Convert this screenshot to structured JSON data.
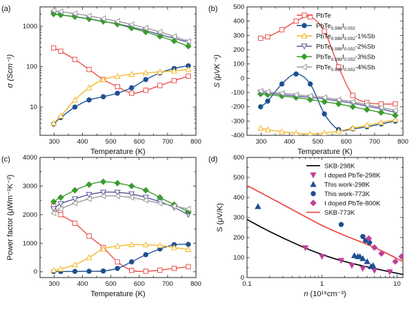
{
  "colors": {
    "red": "#e8504b",
    "blue": "#1e4f91",
    "yellow": "#f3b82a",
    "navy": "#5b5b9a",
    "green": "#3a9b2e",
    "gray": "#9b9b9b",
    "black": "#111111",
    "magenta": "#c0409a"
  },
  "chart_data": [
    {
      "type": "line",
      "panel_label": "(a)",
      "xlabel": "Temperature (K)",
      "ylabel": "σ (Scm⁻¹)",
      "xlim": [
        250,
        800
      ],
      "ylim": [
        2,
        3000
      ],
      "yscale": "log",
      "xticks": [
        300,
        400,
        500,
        600,
        700,
        800
      ],
      "yticks": [
        10,
        100,
        1000
      ],
      "yticklabels": [
        "10",
        "100",
        "1000"
      ],
      "series": [
        {
          "key": "pbte",
          "color_key": "red",
          "marker": "square-open",
          "x": [
            298,
            323,
            373,
            423,
            473,
            523,
            573,
            623,
            673,
            723,
            773
          ],
          "y": [
            290,
            240,
            150,
            85,
            48,
            32,
            22,
            26,
            34,
            45,
            58
          ]
        },
        {
          "key": "pbtei",
          "color_key": "blue",
          "marker": "circle",
          "x": [
            298,
            323,
            373,
            423,
            473,
            523,
            573,
            623,
            673,
            723,
            773
          ],
          "y": [
            3.8,
            5.5,
            10,
            15,
            18,
            22,
            30,
            48,
            70,
            90,
            105
          ]
        },
        {
          "key": "sb1",
          "color_key": "yellow",
          "marker": "triangle-up-open",
          "x": [
            298,
            323,
            373,
            423,
            473,
            523,
            573,
            623,
            673,
            723,
            773
          ],
          "y": [
            4,
            6,
            15,
            30,
            48,
            58,
            65,
            70,
            74,
            78,
            85
          ]
        },
        {
          "key": "sb2",
          "color_key": "navy",
          "marker": "triangle-down-open",
          "x": [
            298,
            323,
            373,
            423,
            473,
            523,
            573,
            623,
            673,
            723,
            773
          ],
          "y": [
            2000,
            1900,
            1700,
            1500,
            1300,
            1150,
            950,
            780,
            620,
            500,
            400
          ]
        },
        {
          "key": "sb3",
          "color_key": "green",
          "marker": "diamond",
          "x": [
            298,
            323,
            373,
            423,
            473,
            523,
            573,
            623,
            673,
            723,
            773
          ],
          "y": [
            2000,
            1900,
            1720,
            1520,
            1320,
            1120,
            900,
            720,
            560,
            430,
            320
          ]
        },
        {
          "key": "sb4",
          "color_key": "gray",
          "marker": "triangle-left-open",
          "x": [
            298,
            323,
            373,
            423,
            473,
            523,
            573,
            623,
            673,
            723,
            773
          ],
          "y": [
            2450,
            2300,
            2050,
            1800,
            1550,
            1320,
            1100,
            900,
            720,
            560,
            420
          ]
        }
      ]
    },
    {
      "type": "line",
      "panel_label": "(b)",
      "xlabel": "Temperature (K)",
      "ylabel": "S (μVK⁻¹)",
      "xlim": [
        250,
        800
      ],
      "ylim": [
        -400,
        500
      ],
      "xticks": [
        300,
        400,
        500,
        600,
        700,
        800
      ],
      "yticks": [
        -400,
        -300,
        -200,
        -100,
        0,
        100,
        200,
        300,
        400,
        500
      ],
      "legend": {
        "position": "top-right",
        "entries": [
          {
            "series": "pbte",
            "base": "PbTe",
            "sub": "",
            "suffix": ""
          },
          {
            "series": "pbtei",
            "base": "PbTe",
            "sub": "0.998",
            "mid": "I",
            "sub2": "0.002",
            "suffix": ""
          },
          {
            "series": "sb1",
            "base": "PbTe",
            "sub": "0.998",
            "mid": "I",
            "sub2": "0.002",
            "suffix": "-1%Sb"
          },
          {
            "series": "sb2",
            "base": "PbTe",
            "sub": "0.998",
            "mid": "I",
            "sub2": "0.002",
            "suffix": "-2%Sb"
          },
          {
            "series": "sb3",
            "base": "PbTe",
            "sub": "0.998",
            "mid": "I",
            "sub2": "0.002",
            "suffix": "-3%Sb"
          },
          {
            "series": "sb4",
            "base": "PbTe",
            "sub": "0.998",
            "mid": "I",
            "sub2": "0.002",
            "suffix": "-4%Sb"
          }
        ]
      },
      "series": [
        {
          "key": "pbte",
          "color_key": "red",
          "marker": "square-open",
          "x": [
            298,
            323,
            373,
            423,
            473,
            523,
            573,
            623,
            673,
            723,
            773
          ],
          "y": [
            280,
            290,
            340,
            400,
            430,
            330,
            80,
            -120,
            -170,
            -180,
            -180
          ]
        },
        {
          "key": "pbtei",
          "color_key": "blue",
          "marker": "circle",
          "x": [
            298,
            323,
            373,
            423,
            473,
            523,
            573,
            623,
            673,
            723,
            773
          ],
          "y": [
            -200,
            -160,
            -40,
            30,
            -40,
            -250,
            -360,
            -355,
            -340,
            -320,
            -300
          ]
        },
        {
          "key": "sb1",
          "color_key": "yellow",
          "marker": "triangle-up-open",
          "x": [
            298,
            323,
            373,
            423,
            473,
            523,
            573,
            623,
            673,
            723,
            773
          ],
          "y": [
            -350,
            -360,
            -375,
            -385,
            -390,
            -385,
            -370,
            -350,
            -330,
            -310,
            -290
          ]
        },
        {
          "key": "sb2",
          "color_key": "navy",
          "marker": "triangle-down-open",
          "x": [
            298,
            323,
            373,
            423,
            473,
            523,
            573,
            623,
            673,
            723,
            773
          ],
          "y": [
            -100,
            -105,
            -115,
            -125,
            -135,
            -145,
            -160,
            -175,
            -195,
            -215,
            -240
          ]
        },
        {
          "key": "sb3",
          "color_key": "green",
          "marker": "diamond",
          "x": [
            298,
            323,
            373,
            423,
            473,
            523,
            573,
            623,
            673,
            723,
            773
          ],
          "y": [
            -110,
            -115,
            -125,
            -135,
            -150,
            -165,
            -180,
            -200,
            -220,
            -240,
            -260
          ]
        },
        {
          "key": "sb4",
          "color_key": "gray",
          "marker": "triangle-left-open",
          "x": [
            298,
            323,
            373,
            423,
            473,
            523,
            573,
            623,
            673,
            723,
            773
          ],
          "y": [
            -90,
            -95,
            -105,
            -115,
            -125,
            -135,
            -150,
            -165,
            -185,
            -205,
            -225
          ]
        }
      ]
    },
    {
      "type": "line",
      "panel_label": "(c)",
      "xlabel": "Temperature (K)",
      "ylabel": "Power factor (μWm⁻¹K⁻²)",
      "xlim": [
        250,
        800
      ],
      "ylim": [
        -200,
        4000
      ],
      "xticks": [
        300,
        400,
        500,
        600,
        700,
        800
      ],
      "yticks": [
        0,
        1000,
        2000,
        3000,
        4000
      ],
      "series": [
        {
          "key": "pbte",
          "color_key": "red",
          "marker": "square-open",
          "x": [
            298,
            323,
            373,
            423,
            473,
            523,
            573,
            623,
            673,
            723,
            773
          ],
          "y": [
            2300,
            2000,
            1700,
            1250,
            850,
            350,
            50,
            20,
            60,
            120,
            180
          ]
        },
        {
          "key": "pbtei",
          "color_key": "blue",
          "marker": "circle",
          "x": [
            298,
            323,
            373,
            423,
            473,
            523,
            573,
            623,
            673,
            723,
            773
          ],
          "y": [
            10,
            10,
            15,
            20,
            30,
            120,
            350,
            600,
            800,
            950,
            960
          ]
        },
        {
          "key": "sb1",
          "color_key": "yellow",
          "marker": "triangle-up-open",
          "x": [
            298,
            323,
            373,
            423,
            473,
            523,
            573,
            623,
            673,
            723,
            773
          ],
          "y": [
            60,
            100,
            250,
            500,
            800,
            900,
            950,
            950,
            920,
            850,
            780
          ]
        },
        {
          "key": "sb2",
          "color_key": "navy",
          "marker": "triangle-down-open",
          "x": [
            298,
            323,
            373,
            423,
            473,
            523,
            573,
            623,
            673,
            723,
            773
          ],
          "y": [
            2200,
            2380,
            2550,
            2700,
            2780,
            2780,
            2720,
            2600,
            2450,
            2250,
            2000
          ]
        },
        {
          "key": "sb3",
          "color_key": "green",
          "marker": "diamond",
          "x": [
            298,
            323,
            373,
            423,
            473,
            523,
            573,
            623,
            673,
            723,
            773
          ],
          "y": [
            2450,
            2600,
            2850,
            3050,
            3150,
            3100,
            3000,
            2850,
            2600,
            2350,
            2100
          ]
        },
        {
          "key": "sb4",
          "color_key": "gray",
          "marker": "triangle-left-open",
          "x": [
            298,
            323,
            373,
            423,
            473,
            523,
            573,
            623,
            673,
            723,
            773
          ],
          "y": [
            2050,
            2200,
            2400,
            2550,
            2650,
            2650,
            2600,
            2500,
            2400,
            2300,
            2200
          ]
        }
      ]
    },
    {
      "type": "scatter",
      "panel_label": "(d)",
      "xlabel_base": "n",
      "xlabel_unit": "(10¹⁹cm⁻³)",
      "ylabel": "S (μV/K)",
      "xscale": "log",
      "xlim": [
        0.1,
        12
      ],
      "ylim": [
        0,
        600
      ],
      "xticks": [
        0.1,
        1,
        10
      ],
      "xticklabels": [
        "0.1",
        "1",
        "10"
      ],
      "yticks": [
        0,
        100,
        200,
        300,
        400,
        500,
        600
      ],
      "legend": {
        "position": "top-right",
        "entries": [
          {
            "label": "SKB-298K",
            "color_key": "black",
            "kind": "line"
          },
          {
            "label": "I doped PbTe-298K",
            "color_key": "magenta",
            "kind": "triangle-down"
          },
          {
            "label": "This work-298K",
            "color_key": "blue",
            "kind": "triangle-up"
          },
          {
            "label": "This work-773K",
            "color_key": "blue",
            "kind": "circle"
          },
          {
            "label": "I doped PbTe-800K",
            "color_key": "magenta",
            "kind": "diamond"
          },
          {
            "label": "SKB-773K",
            "color_key": "red",
            "kind": "line"
          }
        ]
      },
      "curves": [
        {
          "key": "skb298",
          "color_key": "black",
          "x": [
            0.1,
            0.2,
            0.5,
            1,
            2,
            5,
            12
          ],
          "y": [
            290,
            230,
            160,
            115,
            80,
            45,
            15
          ]
        },
        {
          "key": "skb773",
          "color_key": "red",
          "x": [
            0.1,
            0.2,
            0.5,
            1,
            2,
            5,
            12
          ],
          "y": [
            460,
            400,
            320,
            260,
            210,
            150,
            80
          ]
        }
      ],
      "points": [
        {
          "key": "idoped298",
          "color_key": "magenta",
          "marker": "triangle-down",
          "x": [
            0.6,
            1.0,
            1.8,
            2.5,
            3.5,
            5.0,
            8.0
          ],
          "y": [
            148,
            105,
            85,
            60,
            45,
            35,
            28
          ]
        },
        {
          "key": "this298",
          "color_key": "blue",
          "marker": "triangle-up",
          "x": [
            0.14,
            2.7,
            3.0,
            3.2,
            3.5,
            4.0,
            4.5,
            4.8
          ],
          "y": [
            355,
            110,
            105,
            105,
            95,
            80,
            55,
            60
          ]
        },
        {
          "key": "this773",
          "color_key": "blue",
          "marker": "circle",
          "x": [
            1.8,
            3.5,
            3.8,
            4.3
          ],
          "y": [
            265,
            205,
            185,
            175
          ]
        },
        {
          "key": "idoped800",
          "color_key": "magenta",
          "marker": "diamond",
          "x": [
            4.2,
            5.0,
            6.2,
            9.5,
            11.5
          ],
          "y": [
            195,
            150,
            120,
            80,
            105
          ]
        }
      ]
    }
  ]
}
